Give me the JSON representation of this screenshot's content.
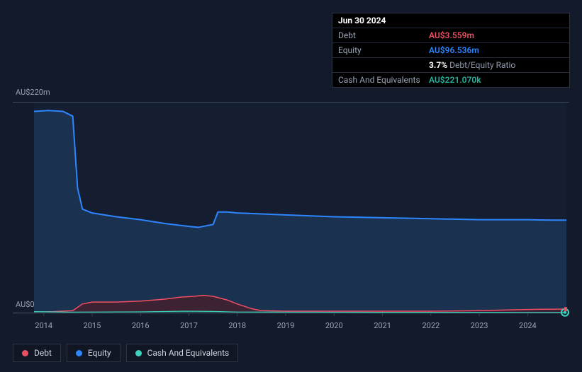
{
  "chart": {
    "type": "area",
    "background_color": "#131b2a",
    "grid_color": "#2a3445",
    "x": {
      "min": 2013.8,
      "max": 2024.8,
      "ticks": [
        2014,
        2015,
        2016,
        2017,
        2018,
        2019,
        2020,
        2021,
        2022,
        2023,
        2024
      ]
    },
    "y": {
      "min": 0,
      "max": 220,
      "label_top": "AU$220m",
      "label_bottom": "AU$0"
    },
    "series": {
      "equity": {
        "label": "Equity",
        "color": "#2e86ff",
        "fill": "#20416b",
        "fill_opacity": 0.55,
        "line_width": 2,
        "points": [
          [
            2013.8,
            210
          ],
          [
            2014.1,
            211
          ],
          [
            2014.4,
            210
          ],
          [
            2014.6,
            205
          ],
          [
            2014.7,
            130
          ],
          [
            2014.8,
            108
          ],
          [
            2015.0,
            104
          ],
          [
            2015.5,
            100
          ],
          [
            2016.0,
            97
          ],
          [
            2016.5,
            93
          ],
          [
            2017.0,
            90
          ],
          [
            2017.2,
            89
          ],
          [
            2017.5,
            92
          ],
          [
            2017.6,
            105
          ],
          [
            2017.8,
            105
          ],
          [
            2018.0,
            104
          ],
          [
            2019.0,
            102
          ],
          [
            2020.0,
            100
          ],
          [
            2021.0,
            99
          ],
          [
            2022.0,
            98
          ],
          [
            2023.0,
            97
          ],
          [
            2024.0,
            97
          ],
          [
            2024.5,
            96.5
          ],
          [
            2024.8,
            96.5
          ]
        ]
      },
      "debt": {
        "label": "Debt",
        "color": "#ef4f63",
        "fill": "#4a1e29",
        "fill_opacity": 0.75,
        "line_width": 1.5,
        "points": [
          [
            2013.8,
            0.5
          ],
          [
            2014.2,
            1
          ],
          [
            2014.6,
            2
          ],
          [
            2014.8,
            9
          ],
          [
            2015.0,
            11
          ],
          [
            2015.5,
            11
          ],
          [
            2016.0,
            12
          ],
          [
            2016.5,
            14
          ],
          [
            2016.8,
            16
          ],
          [
            2017.1,
            17
          ],
          [
            2017.3,
            18
          ],
          [
            2017.5,
            17
          ],
          [
            2017.8,
            13
          ],
          [
            2018.0,
            9
          ],
          [
            2018.3,
            4
          ],
          [
            2018.5,
            2
          ],
          [
            2019.0,
            1.5
          ],
          [
            2020.0,
            1.5
          ],
          [
            2021.0,
            1.5
          ],
          [
            2022.0,
            1.5
          ],
          [
            2023.0,
            2
          ],
          [
            2023.8,
            3
          ],
          [
            2024.3,
            3.5
          ],
          [
            2024.8,
            3.6
          ]
        ]
      },
      "cash": {
        "label": "Cash And Equivalents",
        "color": "#3ad4bd",
        "fill": "#1f4c49",
        "fill_opacity": 0.85,
        "line_width": 1.2,
        "points": [
          [
            2013.8,
            1
          ],
          [
            2014.5,
            0.5
          ],
          [
            2015.0,
            0.6
          ],
          [
            2016.0,
            0.8
          ],
          [
            2017.0,
            1.5
          ],
          [
            2017.5,
            1.2
          ],
          [
            2018.0,
            0.6
          ],
          [
            2019.0,
            0.5
          ],
          [
            2020.0,
            0.4
          ],
          [
            2021.0,
            0.3
          ],
          [
            2022.0,
            0.3
          ],
          [
            2023.0,
            0.25
          ],
          [
            2024.0,
            0.22
          ],
          [
            2024.8,
            0.22
          ]
        ]
      }
    },
    "hover_marker": {
      "x": 2024.5,
      "series": "cash"
    }
  },
  "tooltip": {
    "date": "Jun 30 2024",
    "rows": [
      {
        "k": "Debt",
        "v": "AU$3.559m",
        "cls": "v-red"
      },
      {
        "k": "Equity",
        "v": "AU$96.536m",
        "cls": "v-blue"
      },
      {
        "k": "",
        "v_bold": "3.7%",
        "v_rest": " Debt/Equity Ratio"
      },
      {
        "k": "Cash And Equivalents",
        "v": "AU$221.070k",
        "cls": "v-teal"
      }
    ]
  },
  "legend": [
    {
      "label": "Debt",
      "color": "#ef4f63",
      "key": "debt"
    },
    {
      "label": "Equity",
      "color": "#2e86ff",
      "key": "equity"
    },
    {
      "label": "Cash And Equivalents",
      "color": "#3ad4bd",
      "key": "cash"
    }
  ]
}
